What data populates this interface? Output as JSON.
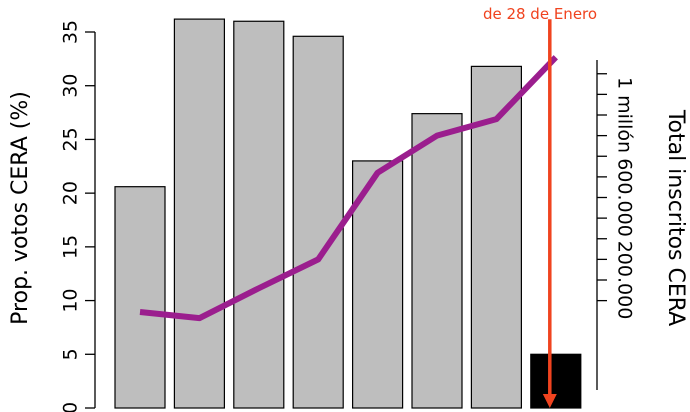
{
  "chart_data": {
    "type": "bar",
    "ylabel": "Prop. votos CERA (%)",
    "y2label": "Total inscritos CERA",
    "ylim": [
      0,
      35
    ],
    "yticks": [
      0,
      5,
      10,
      15,
      20,
      25,
      30,
      35
    ],
    "y2ticks": [
      {
        "value": 200000,
        "label": "200.000"
      },
      {
        "value": 600000,
        "label": "600.000"
      },
      {
        "value": 1000000,
        "label": "1 millón"
      }
    ],
    "y2_minor_ticks": [
      100000,
      300000,
      400000,
      500000,
      700000,
      800000,
      900000,
      1100000,
      1200000
    ],
    "y2lim": [
      0,
      1300000
    ],
    "bar_count": 8,
    "bar_values": [
      20.6,
      36.2,
      36.0,
      34.6,
      23.0,
      27.4,
      31.8,
      5.0
    ],
    "bar_colors": [
      "#bebebe",
      "#bebebe",
      "#bebebe",
      "#bebebe",
      "#bebebe",
      "#bebebe",
      "#bebebe",
      "#000000"
    ],
    "line_series": {
      "name": "Total inscritos CERA",
      "color": "#9b1e8e",
      "values": [
        45000,
        15000,
        160000,
        300000,
        720000,
        900000,
        980000,
        1280000
      ]
    },
    "annotation": {
      "text": "de 28 de Enero",
      "color": "#f0431f",
      "arrow_from_y": 36.0,
      "arrow_to_y": 0
    }
  }
}
